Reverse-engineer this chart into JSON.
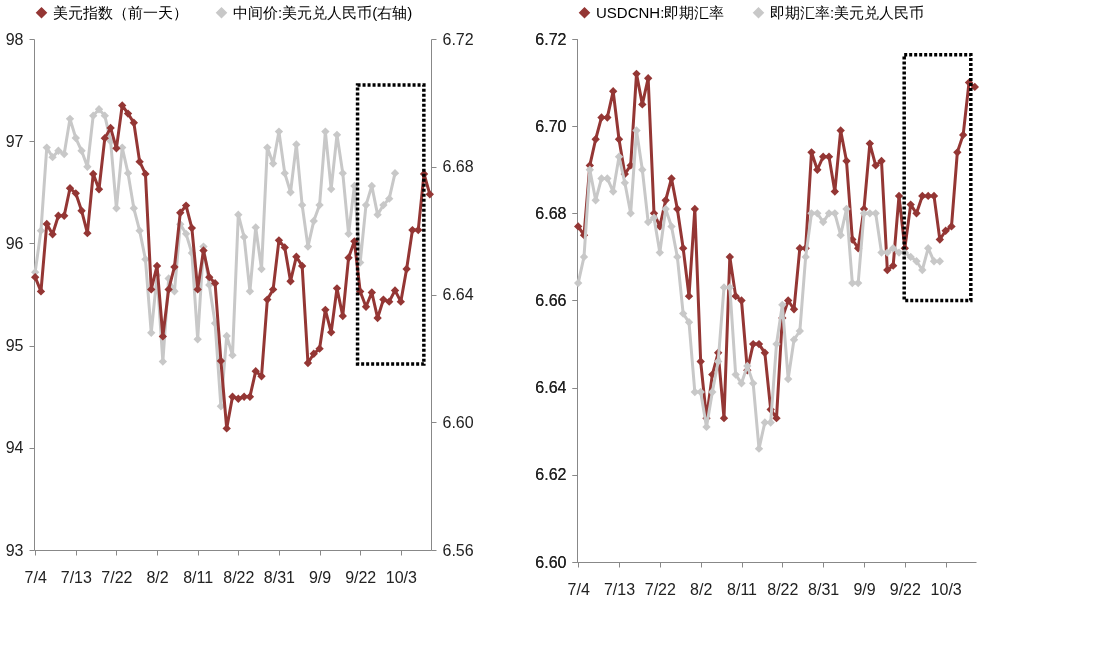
{
  "chart_data": [
    {
      "type": "line",
      "categories": [
        "7/4",
        null,
        null,
        null,
        null,
        null,
        null,
        "7/13",
        null,
        null,
        null,
        null,
        null,
        null,
        "7/22",
        null,
        null,
        null,
        null,
        null,
        null,
        "8/2",
        null,
        null,
        null,
        null,
        null,
        null,
        "8/11",
        null,
        null,
        null,
        null,
        null,
        null,
        "8/22",
        null,
        null,
        null,
        null,
        null,
        null,
        "8/31",
        null,
        null,
        null,
        null,
        null,
        null,
        "9/9",
        null,
        null,
        null,
        null,
        null,
        null,
        "9/22",
        null,
        null,
        null,
        null,
        null,
        null,
        "10/3",
        null,
        null,
        null,
        null,
        null
      ],
      "series": [
        {
          "name": "美元指数（前一天）",
          "color": "#943634",
          "values": [
            95.67,
            95.53,
            96.19,
            96.09,
            96.27,
            96.27,
            96.54,
            96.49,
            96.32,
            96.1,
            96.68,
            96.53,
            97.03,
            97.13,
            96.93,
            97.35,
            97.27,
            97.18,
            96.8,
            96.68,
            95.55,
            95.78,
            95.09,
            95.55,
            95.77,
            96.3,
            96.37,
            96.15,
            95.55,
            95.93,
            95.67,
            95.61,
            94.85,
            94.19,
            94.5,
            94.48,
            94.5,
            94.5,
            94.75,
            94.7,
            95.45,
            95.55,
            96.03,
            95.96,
            95.63,
            95.87,
            95.78,
            94.83,
            94.92,
            94.97,
            95.35,
            95.13,
            95.56,
            95.29,
            95.86,
            96.02,
            95.53,
            95.38,
            95.52,
            95.27,
            95.45,
            95.43,
            95.54,
            95.43,
            95.75,
            96.13,
            96.13,
            96.68,
            96.48
          ]
        },
        {
          "name": "中间价:美元兑人民币(右轴)",
          "color": "#c8c8c8",
          "axis": "y2",
          "values": [
            6.647,
            6.66,
            6.686,
            6.683,
            6.685,
            6.684,
            6.695,
            6.689,
            6.685,
            6.68,
            6.696,
            6.698,
            6.696,
            6.688,
            6.667,
            6.686,
            6.678,
            6.667,
            6.66,
            6.651,
            6.628,
            6.646,
            6.619,
            6.645,
            6.641,
            6.662,
            6.659,
            6.653,
            6.626,
            6.655,
            6.643,
            6.631,
            6.605,
            6.627,
            6.621,
            6.665,
            6.658,
            6.641,
            6.661,
            6.648,
            6.686,
            6.681,
            6.691,
            6.678,
            6.672,
            6.687,
            6.668,
            6.655,
            6.663,
            6.668,
            6.691,
            6.673,
            6.69,
            6.678,
            6.659,
            6.674,
            6.65,
            6.668,
            6.674,
            6.665,
            6.668,
            6.67,
            6.678,
            null,
            null,
            null,
            null,
            null,
            null
          ]
        }
      ],
      "ylim": [
        93,
        98
      ],
      "yticks": [
        93,
        94,
        95,
        96,
        97,
        98
      ],
      "y2lim": [
        6.56,
        6.72
      ],
      "y2ticks": [
        6.56,
        {
          "value": 6.6,
          "label": "6.60"
        },
        6.64,
        6.68,
        6.72
      ],
      "marker": "diamond",
      "legend": "top",
      "grid": false
    },
    {
      "type": "line",
      "categories": [
        "7/4",
        null,
        null,
        null,
        null,
        null,
        null,
        "7/13",
        null,
        null,
        null,
        null,
        null,
        null,
        "7/22",
        null,
        null,
        null,
        null,
        null,
        null,
        "8/2",
        null,
        null,
        null,
        null,
        null,
        null,
        "8/11",
        null,
        null,
        null,
        null,
        null,
        null,
        "8/22",
        null,
        null,
        null,
        null,
        null,
        null,
        "8/31",
        null,
        null,
        null,
        null,
        null,
        null,
        "9/9",
        null,
        null,
        null,
        null,
        null,
        null,
        "9/22",
        null,
        null,
        null,
        null,
        null,
        null,
        "10/3",
        null,
        null,
        null,
        null,
        null
      ],
      "series": [
        {
          "name": "USDCNH:即期汇率",
          "color": "#943634",
          "values": [
            6.677,
            6.675,
            6.691,
            6.697,
            6.702,
            6.702,
            6.708,
            6.697,
            6.689,
            6.691,
            6.712,
            6.705,
            6.711,
            6.68,
            6.677,
            6.683,
            6.688,
            6.681,
            6.672,
            6.661,
            6.681,
            6.646,
            6.633,
            6.643,
            6.648,
            6.633,
            6.67,
            6.661,
            6.66,
            6.644,
            6.65,
            6.65,
            6.648,
            6.635,
            6.633,
            6.656,
            6.66,
            6.658,
            6.672,
            6.672,
            6.694,
            6.69,
            6.693,
            6.693,
            6.685,
            6.699,
            6.692,
            6.674,
            6.672,
            6.681,
            6.696,
            6.691,
            6.692,
            6.667,
            6.668,
            6.684,
            6.672,
            6.682,
            6.68,
            6.684,
            6.684,
            6.684,
            6.674,
            6.676,
            6.677,
            6.694,
            6.698,
            6.71,
            6.709
          ]
        },
        {
          "name": "即期汇率:美元兑人民币",
          "color": "#c8c8c8",
          "values": [
            6.664,
            6.67,
            6.69,
            6.683,
            6.688,
            6.688,
            6.685,
            6.693,
            6.687,
            6.68,
            6.699,
            6.69,
            6.678,
            6.679,
            6.671,
            6.681,
            6.677,
            6.67,
            6.657,
            6.655,
            6.639,
            6.639,
            6.631,
            6.639,
            6.646,
            6.663,
            6.663,
            6.643,
            6.641,
            6.645,
            6.641,
            6.626,
            6.632,
            6.632,
            6.65,
            6.659,
            6.642,
            6.651,
            6.653,
            6.67,
            6.68,
            6.68,
            6.678,
            6.68,
            6.68,
            6.675,
            6.681,
            6.664,
            6.664,
            6.68,
            6.68,
            6.68,
            6.671,
            6.671,
            6.672,
            6.671,
            6.671,
            6.67,
            6.669,
            6.667,
            6.672,
            6.669,
            6.669,
            null,
            null,
            null,
            null,
            null,
            null
          ]
        }
      ],
      "ylim": [
        6.6,
        6.72
      ],
      "yticks": [
        {
          "value": 6.6,
          "label": "6.60"
        },
        6.62,
        6.64,
        6.66,
        6.68,
        {
          "value": 6.7,
          "label": "6.70"
        },
        6.72
      ],
      "marker": "diamond",
      "legend": "top",
      "grid": false
    }
  ]
}
